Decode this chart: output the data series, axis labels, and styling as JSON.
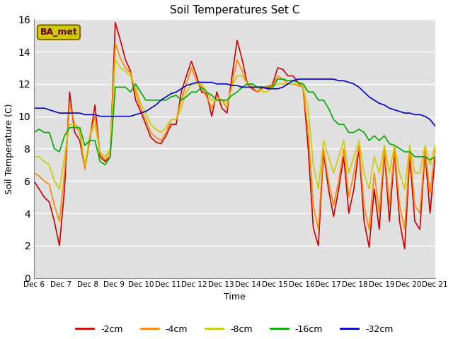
{
  "title": "Soil Temperatures Set C",
  "xlabel": "Time",
  "ylabel": "Soil Temperature (C)",
  "ylim": [
    0,
    16
  ],
  "yticks": [
    0,
    2,
    4,
    6,
    8,
    10,
    12,
    14,
    16
  ],
  "xtick_labels": [
    "Dec 6",
    "Dec 7",
    "Dec 8",
    "Dec 9",
    "Dec 10",
    "Dec 11",
    "Dec 12",
    "Dec 13",
    "Dec 14",
    "Dec 15",
    "Dec 16",
    "Dec 17",
    "Dec 18",
    "Dec 19",
    "Dec 20",
    "Dec 21"
  ],
  "legend_labels": [
    "-2cm",
    "-4cm",
    "-8cm",
    "-16cm",
    "-32cm"
  ],
  "line_colors": [
    "#cc0000",
    "#ff8800",
    "#cccc00",
    "#00aa00",
    "#0000cc"
  ],
  "background_color": "#e0e0e0",
  "annotation_text": "BA_met",
  "annotation_bg": "#cccc00",
  "annotation_border": "#886600",
  "annotation_text_color": "#660000",
  "d2cm": [
    6.0,
    5.5,
    5.0,
    4.7,
    3.5,
    2.0,
    5.5,
    11.5,
    9.0,
    8.5,
    6.8,
    8.6,
    10.7,
    7.5,
    7.2,
    7.5,
    15.8,
    14.7,
    13.5,
    12.8,
    11.0,
    10.3,
    9.5,
    8.7,
    8.4,
    8.3,
    8.8,
    9.5,
    9.5,
    11.5,
    12.5,
    13.4,
    12.5,
    11.5,
    11.4,
    10.0,
    11.5,
    10.5,
    10.2,
    12.5,
    14.7,
    13.5,
    12.0,
    11.7,
    11.5,
    11.8,
    11.7,
    12.0,
    13.0,
    12.9,
    12.5,
    12.5,
    12.1,
    11.8,
    8.0,
    3.1,
    2.0,
    7.8,
    5.5,
    3.8,
    5.5,
    7.5,
    4.0,
    5.5,
    8.0,
    3.5,
    1.9,
    5.5,
    3.0,
    7.8,
    3.5,
    7.8,
    3.5,
    1.8,
    7.5,
    3.5,
    3.0,
    7.8,
    4.0,
    7.5
  ],
  "d4cm": [
    6.5,
    6.3,
    6.0,
    5.8,
    4.5,
    3.5,
    6.5,
    10.8,
    9.5,
    9.0,
    6.7,
    8.8,
    10.0,
    7.7,
    7.3,
    7.8,
    14.5,
    13.6,
    13.0,
    12.7,
    11.5,
    10.5,
    9.8,
    9.0,
    8.7,
    8.5,
    9.0,
    9.8,
    9.8,
    11.0,
    12.0,
    13.0,
    12.2,
    11.8,
    11.2,
    10.5,
    11.2,
    11.0,
    10.5,
    12.0,
    13.5,
    12.8,
    12.0,
    11.8,
    11.5,
    11.7,
    11.9,
    11.9,
    12.5,
    12.3,
    12.0,
    12.0,
    11.9,
    11.8,
    9.0,
    4.5,
    3.0,
    8.0,
    6.0,
    4.5,
    6.0,
    8.0,
    5.0,
    6.5,
    8.2,
    4.5,
    3.0,
    6.5,
    4.0,
    8.0,
    4.5,
    8.0,
    4.5,
    3.0,
    8.0,
    4.5,
    4.0,
    8.0,
    5.2,
    8.0
  ],
  "d8cm": [
    7.5,
    7.5,
    7.2,
    7.0,
    6.0,
    5.5,
    7.5,
    9.5,
    9.5,
    9.2,
    7.0,
    8.8,
    9.5,
    7.8,
    7.5,
    8.0,
    13.5,
    13.0,
    12.8,
    12.5,
    11.8,
    10.8,
    10.2,
    9.5,
    9.2,
    9.0,
    9.3,
    9.8,
    9.8,
    10.5,
    11.5,
    12.0,
    12.0,
    12.0,
    11.5,
    11.0,
    11.0,
    11.0,
    10.8,
    11.8,
    12.5,
    12.5,
    12.0,
    12.0,
    11.8,
    11.5,
    11.5,
    11.8,
    12.0,
    12.0,
    12.0,
    12.0,
    12.0,
    11.8,
    10.5,
    7.0,
    5.5,
    8.5,
    7.5,
    6.5,
    7.5,
    8.5,
    6.5,
    7.5,
    8.5,
    6.5,
    5.5,
    7.5,
    6.5,
    8.2,
    6.5,
    8.2,
    6.5,
    5.5,
    8.2,
    6.5,
    6.5,
    8.2,
    7.0,
    8.2
  ],
  "d16cm": [
    9.0,
    9.2,
    9.0,
    9.0,
    8.0,
    7.8,
    8.8,
    9.3,
    9.3,
    9.3,
    8.2,
    8.5,
    8.5,
    7.2,
    7.0,
    7.5,
    11.8,
    11.8,
    11.8,
    11.5,
    12.0,
    11.5,
    11.0,
    11.0,
    11.0,
    11.0,
    11.0,
    11.2,
    11.3,
    11.0,
    11.2,
    11.5,
    11.5,
    11.8,
    11.5,
    11.3,
    11.0,
    11.0,
    11.0,
    11.3,
    11.5,
    11.8,
    12.0,
    12.0,
    11.8,
    11.8,
    11.8,
    11.8,
    12.3,
    12.3,
    12.2,
    12.2,
    12.1,
    12.0,
    11.5,
    11.5,
    11.0,
    11.0,
    10.5,
    9.8,
    9.5,
    9.5,
    9.0,
    9.0,
    9.2,
    9.0,
    8.5,
    8.8,
    8.5,
    8.8,
    8.3,
    8.2,
    8.0,
    7.8,
    7.8,
    7.5,
    7.5,
    7.5,
    7.3,
    7.5
  ],
  "d32cm": [
    10.5,
    10.5,
    10.5,
    10.4,
    10.3,
    10.2,
    10.2,
    10.2,
    10.2,
    10.2,
    10.1,
    10.1,
    10.1,
    10.0,
    10.0,
    10.0,
    10.0,
    10.0,
    10.0,
    10.0,
    10.1,
    10.2,
    10.3,
    10.5,
    10.7,
    11.0,
    11.2,
    11.4,
    11.5,
    11.7,
    11.9,
    12.0,
    12.1,
    12.1,
    12.1,
    12.1,
    12.0,
    12.0,
    12.0,
    11.9,
    11.9,
    11.8,
    11.8,
    11.8,
    11.8,
    11.8,
    11.7,
    11.7,
    11.7,
    11.8,
    12.0,
    12.2,
    12.3,
    12.3,
    12.3,
    12.3,
    12.3,
    12.3,
    12.3,
    12.3,
    12.2,
    12.2,
    12.1,
    12.0,
    11.8,
    11.5,
    11.2,
    11.0,
    10.8,
    10.7,
    10.5,
    10.4,
    10.3,
    10.2,
    10.2,
    10.1,
    10.1,
    10.0,
    9.8,
    9.4
  ]
}
